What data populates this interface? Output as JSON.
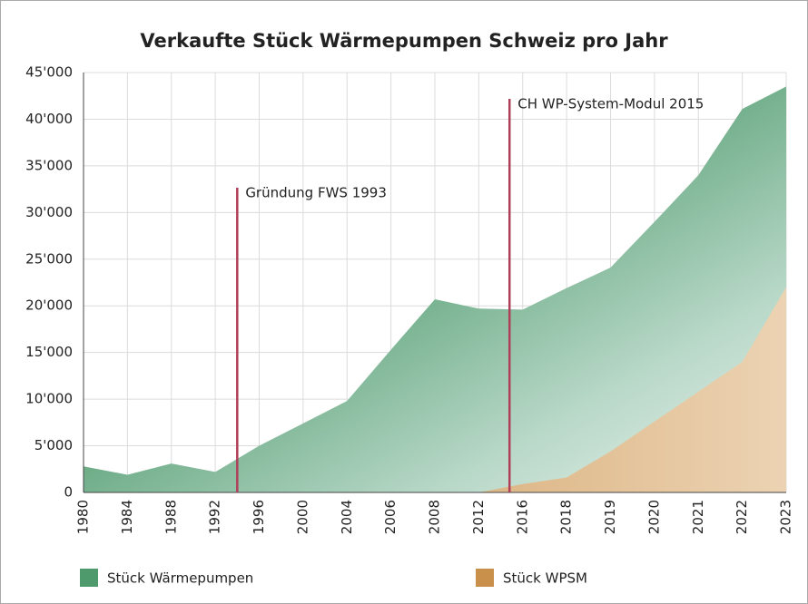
{
  "chart_data": {
    "type": "area",
    "title": "Verkaufte Stück Wärmepumpen Schweiz pro Jahr",
    "categories": [
      "1980",
      "1984",
      "1988",
      "1992",
      "1996",
      "2000",
      "2004",
      "2006",
      "2008",
      "2012",
      "2016",
      "2018",
      "2019",
      "2020",
      "2021",
      "2022",
      "2023"
    ],
    "series": [
      {
        "name": "Stück Wärmepumpen",
        "color": "#4e9a6c",
        "values": [
          2800,
          1900,
          3100,
          2200,
          5000,
          7400,
          9800,
          15300,
          20700,
          19700,
          19600,
          21900,
          24100,
          29000,
          34000,
          41100,
          43500
        ]
      },
      {
        "name": "Stück WPSM",
        "color": "#c8904a",
        "values": [
          0,
          0,
          0,
          0,
          0,
          0,
          0,
          0,
          0,
          0,
          900,
          1600,
          4400,
          7600,
          10800,
          14000,
          22000
        ]
      }
    ],
    "annotations": [
      {
        "text": "Gründung FWS 1993"
      },
      {
        "text": "CH WP-System-Modul 2015"
      }
    ],
    "ylim": [
      0,
      45000
    ],
    "yticks": [
      0,
      {
        "value": 5000,
        "label": "5'000"
      },
      {
        "value": 10000,
        "label": "10'000"
      },
      {
        "value": 15000,
        "label": "15'000"
      },
      {
        "value": 20000,
        "label": "20'000"
      },
      {
        "value": 25000,
        "label": "25'000"
      },
      {
        "value": 30000,
        "label": "30'000"
      },
      {
        "value": 35000,
        "label": "35'000"
      },
      {
        "value": 40000,
        "label": "40'000"
      },
      {
        "value": 45000,
        "label": "45'000"
      }
    ],
    "grid": true
  }
}
